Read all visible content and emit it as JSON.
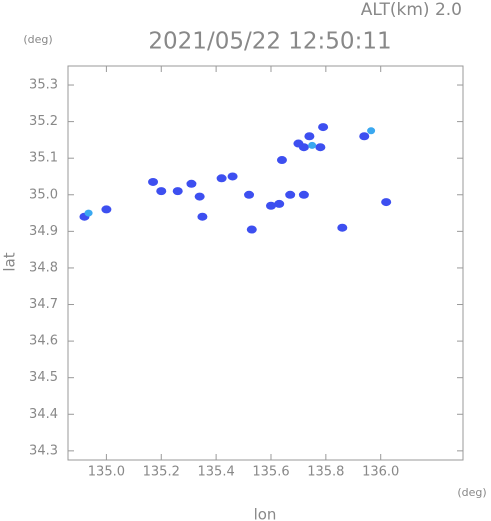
{
  "chart_data": {
    "type": "scatter",
    "title": "2021/05/22 12:50:11",
    "subtitle": "ALT(km) 2.0",
    "x_label": "lon",
    "y_label": "lat",
    "x_unit": "(deg)",
    "y_unit": "(deg)",
    "xlim": [
      134.86,
      136.3
    ],
    "ylim": [
      34.275,
      35.352
    ],
    "xticks": [
      {
        "value": 135.0,
        "label": "135.0"
      },
      135.2,
      135.4,
      135.6,
      135.8,
      {
        "value": 136.0,
        "label": "136.0"
      }
    ],
    "yticks": [
      34.3,
      34.4,
      34.5,
      34.6,
      34.7,
      34.8,
      34.9,
      {
        "value": 35.0,
        "label": "35.0"
      },
      35.1,
      35.2,
      35.3
    ],
    "series": [
      {
        "color": "#3d4ff0",
        "x": [
          134.92,
          135.0,
          135.17,
          135.2,
          135.31,
          135.26,
          135.34,
          135.35,
          135.42,
          135.46,
          135.52,
          135.53,
          135.64,
          135.6,
          135.63,
          135.67,
          135.72,
          135.72,
          135.78,
          135.79,
          135.74,
          135.86,
          135.94,
          136.02,
          135.7
        ],
        "values": [
          34.94,
          34.96,
          35.035,
          35.01,
          35.03,
          35.01,
          34.995,
          34.94,
          35.045,
          35.05,
          35.0,
          34.905,
          35.095,
          34.97,
          34.975,
          35.0,
          35.0,
          35.13,
          35.13,
          35.185,
          35.16,
          34.91,
          35.16,
          34.98,
          35.14
        ]
      },
      {
        "color": "#3aa8f0",
        "x": [
          134.935,
          135.75,
          135.965
        ],
        "values": [
          34.95,
          35.135,
          35.175
        ]
      }
    ]
  }
}
